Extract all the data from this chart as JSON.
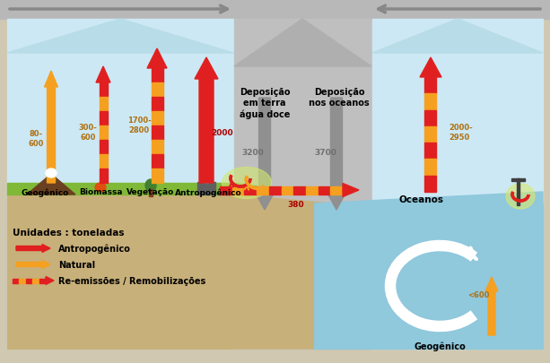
{
  "arrow_red": "#e02020",
  "arrow_orange": "#f5a020",
  "arrow_gray": "#909090",
  "color_sky": "#cce8f4",
  "color_sky_peak": "#b8dce8",
  "color_gray_panel": "#c0bfbf",
  "color_ground": "#c8b07a",
  "color_ocean": "#90c8dc",
  "color_green": "#80b838",
  "color_outer": "#d0c8b0",
  "color_topbar": "#b8b8b8",
  "labels": {
    "geogenico_left": "Geogênico",
    "biomassa": "Biomassa",
    "vegetacao": "Vegetação",
    "antropogenico_left": "Antropogênico",
    "deposicao_terra": "Deposição\nem terra\nágua doce",
    "deposicao_oceanos": "Deposição\nnos oceanos",
    "oceanos": "Oceanos",
    "geogenico_right": "Geogênico",
    "unidades": "Unidades : toneladas",
    "legend1": "Antropogênico",
    "legend2": "Natural",
    "legend3": "Re-emissões / Remobilizações"
  },
  "values": {
    "v1": "80-\n600",
    "v2": "300-\n600",
    "v3": "1700-\n2800",
    "v4": "2000",
    "v5": "3200",
    "v6": "3700",
    "v7": "2000-\n2950",
    "v8": "<600",
    "v9": "380"
  }
}
